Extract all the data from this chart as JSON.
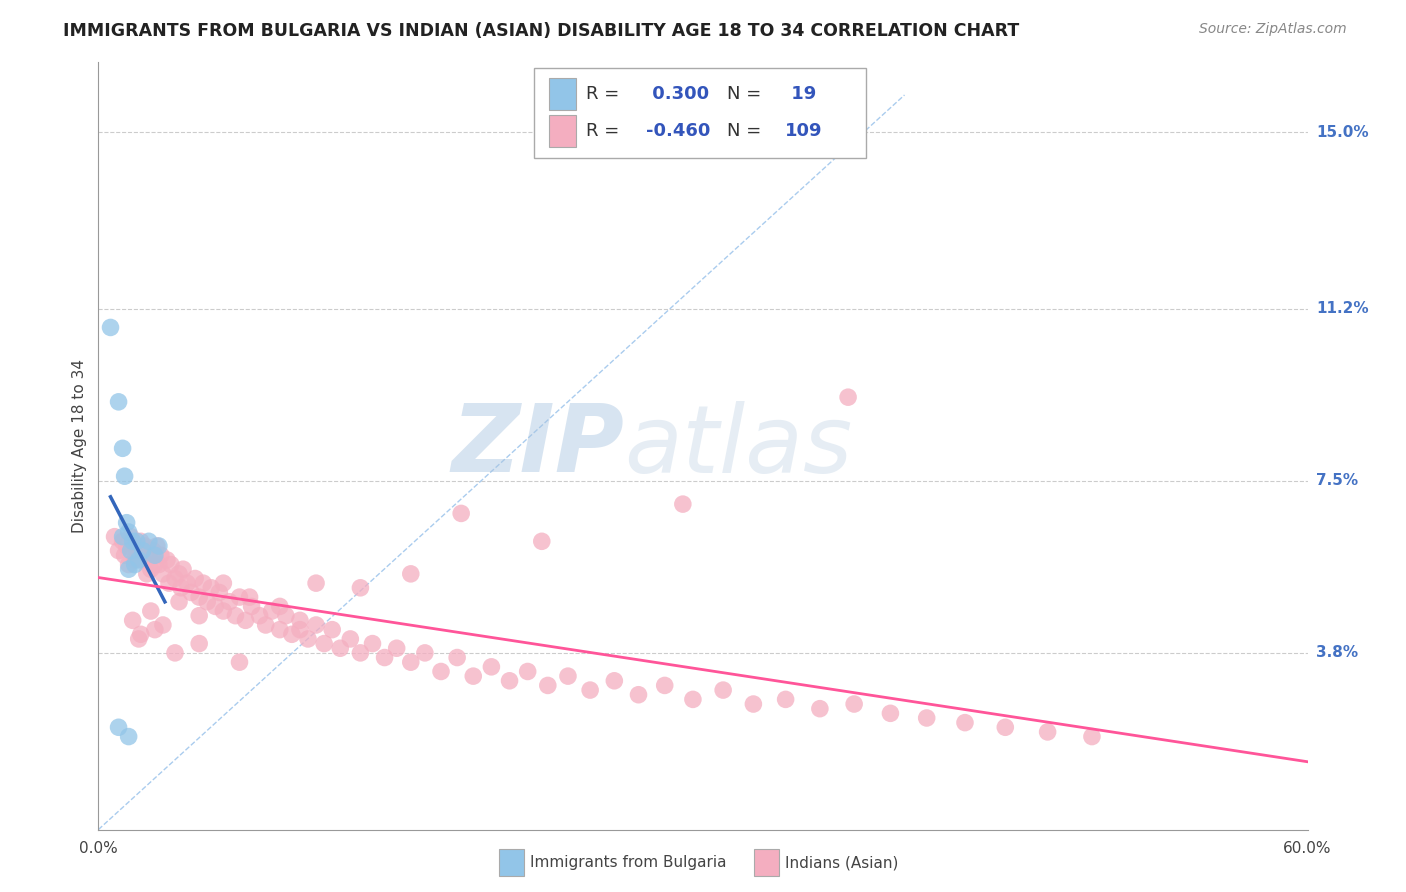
{
  "title": "IMMIGRANTS FROM BULGARIA VS INDIAN (ASIAN) DISABILITY AGE 18 TO 34 CORRELATION CHART",
  "source": "Source: ZipAtlas.com",
  "ylabel": "Disability Age 18 to 34",
  "xlim": [
    0.0,
    0.6
  ],
  "ylim": [
    0.0,
    0.165
  ],
  "ytick_labels": [
    "3.8%",
    "7.5%",
    "11.2%",
    "15.0%"
  ],
  "ytick_positions": [
    0.038,
    0.075,
    0.112,
    0.15
  ],
  "legend_bottom_labels": [
    "Immigrants from Bulgaria",
    "Indians (Asian)"
  ],
  "r_bulgaria": 0.3,
  "n_bulgaria": 19,
  "r_indian": -0.46,
  "n_indian": 109,
  "color_bulgaria": "#92c5e8",
  "color_indian": "#f4aec0",
  "line_color_bulgaria": "#3366bb",
  "line_color_indian": "#ff5599",
  "watermark_zip": "ZIP",
  "watermark_atlas": "atlas",
  "background_color": "#ffffff",
  "grid_color": "#cccccc",
  "bulgaria_x": [
    0.006,
    0.01,
    0.012,
    0.013,
    0.014,
    0.015,
    0.015,
    0.016,
    0.017,
    0.018,
    0.019,
    0.02,
    0.022,
    0.025,
    0.028,
    0.03,
    0.015,
    0.01,
    0.012
  ],
  "bulgaria_y": [
    0.108,
    0.092,
    0.082,
    0.076,
    0.066,
    0.064,
    0.056,
    0.06,
    0.062,
    0.057,
    0.062,
    0.058,
    0.06,
    0.062,
    0.059,
    0.061,
    0.02,
    0.022,
    0.063
  ],
  "indian_x": [
    0.008,
    0.01,
    0.012,
    0.013,
    0.014,
    0.015,
    0.016,
    0.018,
    0.019,
    0.02,
    0.021,
    0.022,
    0.023,
    0.024,
    0.025,
    0.026,
    0.027,
    0.028,
    0.029,
    0.03,
    0.031,
    0.032,
    0.034,
    0.035,
    0.036,
    0.038,
    0.04,
    0.041,
    0.042,
    0.044,
    0.046,
    0.048,
    0.05,
    0.052,
    0.054,
    0.056,
    0.058,
    0.06,
    0.062,
    0.065,
    0.068,
    0.07,
    0.073,
    0.076,
    0.08,
    0.083,
    0.086,
    0.09,
    0.093,
    0.096,
    0.1,
    0.104,
    0.108,
    0.112,
    0.116,
    0.12,
    0.125,
    0.13,
    0.136,
    0.142,
    0.148,
    0.155,
    0.162,
    0.17,
    0.178,
    0.186,
    0.195,
    0.204,
    0.213,
    0.223,
    0.233,
    0.244,
    0.256,
    0.268,
    0.281,
    0.295,
    0.31,
    0.325,
    0.341,
    0.358,
    0.375,
    0.393,
    0.411,
    0.43,
    0.45,
    0.471,
    0.493,
    0.372,
    0.29,
    0.22,
    0.18,
    0.155,
    0.13,
    0.108,
    0.09,
    0.075,
    0.062,
    0.05,
    0.04,
    0.032,
    0.026,
    0.021,
    0.017,
    0.02,
    0.028,
    0.038,
    0.05,
    0.07,
    0.1
  ],
  "indian_y": [
    0.063,
    0.06,
    0.062,
    0.059,
    0.061,
    0.057,
    0.063,
    0.058,
    0.06,
    0.059,
    0.062,
    0.058,
    0.061,
    0.055,
    0.059,
    0.056,
    0.06,
    0.057,
    0.061,
    0.057,
    0.059,
    0.055,
    0.058,
    0.053,
    0.057,
    0.054,
    0.055,
    0.052,
    0.056,
    0.053,
    0.051,
    0.054,
    0.05,
    0.053,
    0.049,
    0.052,
    0.048,
    0.051,
    0.047,
    0.049,
    0.046,
    0.05,
    0.045,
    0.048,
    0.046,
    0.044,
    0.047,
    0.043,
    0.046,
    0.042,
    0.045,
    0.041,
    0.044,
    0.04,
    0.043,
    0.039,
    0.041,
    0.038,
    0.04,
    0.037,
    0.039,
    0.036,
    0.038,
    0.034,
    0.037,
    0.033,
    0.035,
    0.032,
    0.034,
    0.031,
    0.033,
    0.03,
    0.032,
    0.029,
    0.031,
    0.028,
    0.03,
    0.027,
    0.028,
    0.026,
    0.027,
    0.025,
    0.024,
    0.023,
    0.022,
    0.021,
    0.02,
    0.093,
    0.07,
    0.062,
    0.068,
    0.055,
    0.052,
    0.053,
    0.048,
    0.05,
    0.053,
    0.046,
    0.049,
    0.044,
    0.047,
    0.042,
    0.045,
    0.041,
    0.043,
    0.038,
    0.04,
    0.036,
    0.043
  ],
  "diag_line_x": [
    0.0,
    0.4
  ],
  "diag_line_y": [
    0.0,
    0.158
  ],
  "bulgaria_line_x": [
    0.006,
    0.033
  ],
  "india_line_x": [
    0.0,
    0.6
  ]
}
